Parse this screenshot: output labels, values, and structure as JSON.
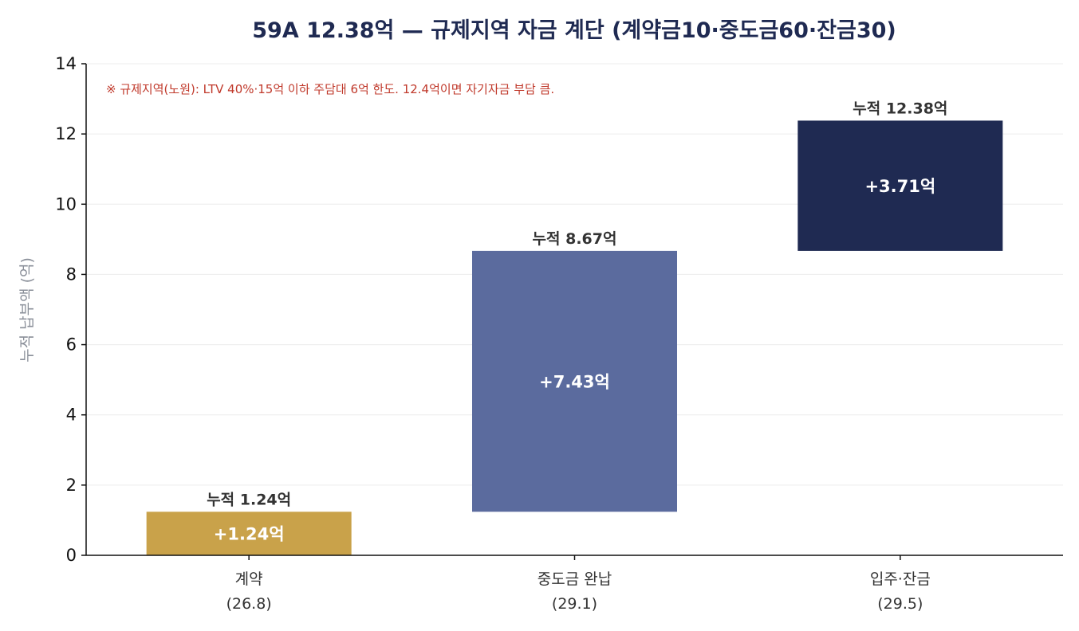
{
  "chart_data": {
    "type": "bar",
    "subtype": "waterfall",
    "title": "59A 12.38억 — 규제지역 자금 계단 (계약금10·중도금60·잔금30)",
    "note": "※ 규제지역(노원): LTV 40%·15억 이하 주담대 6억 한도. 12.4억이면 자기자금 부담 큼.",
    "ylabel": "누적 납부액 (억)",
    "xlabel": "",
    "ylim": [
      0,
      14
    ],
    "yticks": [
      0,
      2,
      4,
      6,
      8,
      10,
      12,
      14
    ],
    "grid": true,
    "categories": [
      [
        "계약",
        "(26.8)"
      ],
      [
        "중도금 완납",
        "(29.1)"
      ],
      [
        "입주·잔금",
        "(29.5)"
      ]
    ],
    "steps": [
      {
        "start": 0,
        "end": 1.24,
        "delta_label": "+1.24억",
        "cumulative_label": "누적 1.24억",
        "color": "#c9a24a"
      },
      {
        "start": 1.24,
        "end": 8.67,
        "delta_label": "+7.43억",
        "cumulative_label": "누적 8.67억",
        "color": "#5b6b9e"
      },
      {
        "start": 8.67,
        "end": 12.38,
        "delta_label": "+3.71억",
        "cumulative_label": "누적 12.38억",
        "color": "#1f2a52"
      }
    ]
  }
}
